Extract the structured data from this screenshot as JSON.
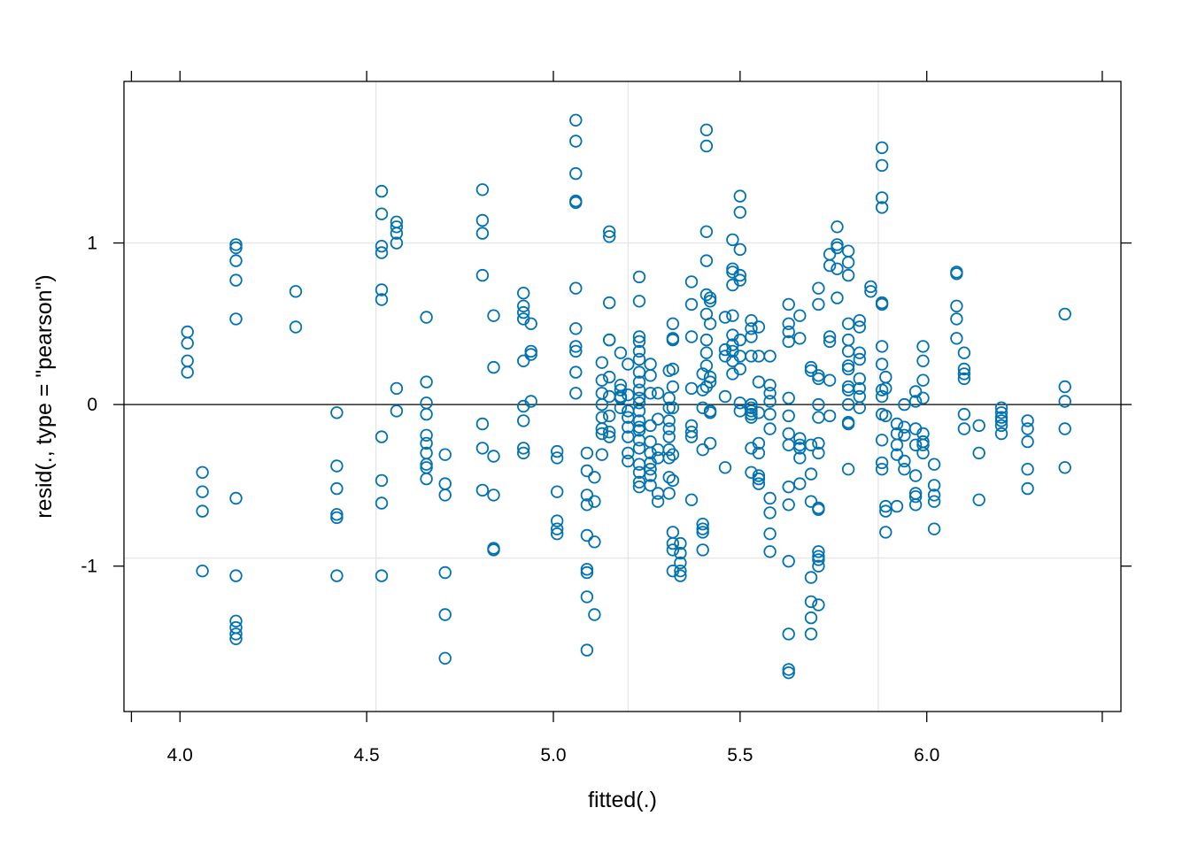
{
  "chart_data": {
    "type": "scatter",
    "title": "",
    "xlabel": "fitted(.)",
    "ylabel": "resid(., type = \"pearson\")",
    "xlim": [
      3.85,
      6.52
    ],
    "ylim": [
      -1.9,
      2.0
    ],
    "xticks": [
      "4.0",
      "4.5",
      "5.0",
      "5.5",
      "6.0"
    ],
    "yticks": [
      "-1",
      "0",
      "1"
    ],
    "grid": true,
    "reference_line_y": 0,
    "point_color": "#0072B2",
    "grid_color": "#E6E6E6",
    "groups": [
      {
        "x": 4.02,
        "y": [
          0.45,
          0.38,
          0.27,
          0.2
        ]
      },
      {
        "x": 4.06,
        "y": [
          -0.42,
          -0.54,
          -0.66,
          -1.03
        ]
      },
      {
        "x": 4.15,
        "y": [
          0.99,
          0.97,
          0.89,
          0.77,
          0.53,
          -0.58,
          -1.06,
          -1.34,
          -1.38,
          -1.42,
          -1.45
        ]
      },
      {
        "x": 4.31,
        "y": [
          0.7,
          0.48
        ]
      },
      {
        "x": 4.42,
        "y": [
          -0.05,
          -0.38,
          -0.52,
          -0.68,
          -0.7,
          -1.06
        ]
      },
      {
        "x": 4.54,
        "y": [
          1.32,
          1.18,
          0.98,
          0.94,
          0.71,
          0.65,
          -0.2,
          -0.47,
          -0.61,
          -1.06
        ]
      },
      {
        "x": 4.58,
        "y": [
          1.13,
          1.1,
          1.06,
          1.0,
          0.1,
          -0.04
        ]
      },
      {
        "x": 4.66,
        "y": [
          0.54,
          0.14,
          0.01,
          -0.06,
          -0.19,
          -0.24,
          -0.3,
          -0.37,
          -0.39,
          -0.46
        ]
      },
      {
        "x": 4.71,
        "y": [
          -0.31,
          -0.49,
          -0.56,
          -1.04,
          -1.3,
          -1.57
        ]
      },
      {
        "x": 4.81,
        "y": [
          1.33,
          1.14,
          1.06,
          0.8,
          -0.12,
          -0.27,
          -0.53
        ]
      },
      {
        "x": 4.84,
        "y": [
          0.55,
          0.23,
          -0.32,
          -0.56,
          -0.89,
          -0.9
        ]
      },
      {
        "x": 4.92,
        "y": [
          0.69,
          0.61,
          0.57,
          0.53,
          0.27,
          -0.01,
          -0.1,
          -0.27,
          -0.3
        ]
      },
      {
        "x": 4.94,
        "y": [
          0.5,
          0.33,
          0.31,
          0.02
        ]
      },
      {
        "x": 5.01,
        "y": [
          -0.29,
          -0.33,
          -0.54,
          -0.72,
          -0.77,
          -0.8
        ]
      },
      {
        "x": 5.06,
        "y": [
          1.76,
          1.63,
          1.43,
          1.26,
          1.25,
          0.72,
          0.47,
          0.36,
          0.33,
          0.2,
          0.07
        ]
      },
      {
        "x": 5.09,
        "y": [
          -0.3,
          -0.41,
          -0.56,
          -0.62,
          -0.81,
          -1.02,
          -1.04,
          -1.19,
          -1.52
        ]
      },
      {
        "x": 5.11,
        "y": [
          -0.45,
          -0.6,
          -0.85,
          -1.3
        ]
      },
      {
        "x": 5.13,
        "y": [
          0.26,
          0.15,
          0.07,
          0.0,
          -0.08,
          -0.15,
          -0.18,
          -0.31
        ]
      },
      {
        "x": 5.15,
        "y": [
          1.07,
          1.04,
          0.63,
          0.4,
          0.4,
          0.17,
          0.05,
          -0.07,
          -0.17,
          -0.2
        ]
      },
      {
        "x": 5.18,
        "y": [
          0.32,
          0.12,
          0.09,
          0.05,
          0.04,
          -0.02
        ]
      },
      {
        "x": 5.2,
        "y": [
          0.25,
          0.06,
          -0.04,
          -0.08,
          -0.14,
          -0.2,
          -0.3,
          -0.35
        ]
      },
      {
        "x": 5.23,
        "y": [
          0.79,
          0.64,
          0.42,
          0.39,
          0.33,
          0.28,
          0.2,
          0.14,
          0.09,
          0.04,
          0.01,
          -0.04,
          -0.1,
          -0.14,
          -0.16,
          -0.22,
          -0.27,
          -0.37,
          -0.42,
          -0.48,
          -0.51
        ]
      },
      {
        "x": 5.26,
        "y": [
          0.25,
          0.18,
          0.07,
          -0.13,
          -0.23,
          -0.3,
          -0.36,
          -0.4,
          -0.44,
          -0.5
        ]
      },
      {
        "x": 5.28,
        "y": [
          0.07,
          -0.09,
          -0.28,
          -0.33,
          -0.55,
          -0.6
        ]
      },
      {
        "x": 5.31,
        "y": [
          0.21,
          0.04,
          -0.02,
          -0.1,
          -0.15,
          -0.2,
          -0.28,
          -0.33,
          -0.45,
          -0.55
        ]
      },
      {
        "x": 5.32,
        "y": [
          0.5,
          0.41,
          0.4,
          0.22,
          0.11,
          -0.02,
          -0.31,
          -0.47,
          -0.79,
          -0.86,
          -0.9,
          -1.03
        ]
      },
      {
        "x": 5.34,
        "y": [
          -0.86,
          -0.92,
          -0.98,
          -1.03,
          -1.06
        ]
      },
      {
        "x": 5.37,
        "y": [
          0.76,
          0.62,
          0.42,
          0.1,
          -0.13,
          -0.17,
          -0.2,
          -0.59
        ]
      },
      {
        "x": 5.4,
        "y": [
          0.19,
          0.09,
          -0.02,
          -0.28,
          -0.74,
          -0.77,
          -0.79,
          -0.9
        ]
      },
      {
        "x": 5.41,
        "y": [
          1.7,
          1.6,
          1.07,
          0.89,
          0.68,
          0.56,
          0.4,
          0.32,
          0.24,
          0.11
        ]
      },
      {
        "x": 5.42,
        "y": [
          0.66,
          0.64,
          0.5,
          0.17,
          0.14,
          -0.04,
          -0.05,
          -0.24
        ]
      },
      {
        "x": 5.46,
        "y": [
          0.54,
          0.34,
          0.3,
          0.05,
          -0.39
        ]
      },
      {
        "x": 5.48,
        "y": [
          1.02,
          0.84,
          0.82,
          0.74,
          0.55,
          0.43,
          0.37,
          0.33,
          0.27,
          0.19
        ]
      },
      {
        "x": 5.5,
        "y": [
          1.29,
          1.19,
          0.96,
          0.8,
          0.77,
          0.4,
          0.3,
          0.22,
          0.01,
          -0.04
        ]
      },
      {
        "x": 5.53,
        "y": [
          0.52,
          0.47,
          0.42,
          0.3,
          0.0,
          -0.02,
          -0.04,
          -0.06,
          -0.08,
          -0.27,
          -0.42
        ]
      },
      {
        "x": 5.55,
        "y": [
          0.48,
          0.3,
          0.14,
          -0.05,
          -0.24,
          -0.3,
          -0.44,
          -0.46,
          -0.49
        ]
      },
      {
        "x": 5.58,
        "y": [
          0.3,
          0.12,
          0.07,
          0.02,
          -0.06,
          -0.15,
          -0.58,
          -0.67,
          -0.8,
          -0.91
        ]
      },
      {
        "x": 5.63,
        "y": [
          0.62,
          0.5,
          0.45,
          0.39,
          0.04,
          -0.07,
          -0.18,
          -0.25,
          -0.51,
          -0.62,
          -0.97,
          -1.42,
          -1.64,
          -1.66
        ]
      },
      {
        "x": 5.66,
        "y": [
          0.55,
          0.41,
          -0.21,
          -0.25,
          -0.27,
          -0.33,
          -0.49
        ]
      },
      {
        "x": 5.69,
        "y": [
          0.23,
          0.21,
          -0.25,
          -0.43,
          -0.6,
          -1.07,
          -1.22,
          -1.32,
          -1.42
        ]
      },
      {
        "x": 5.71,
        "y": [
          0.72,
          0.62,
          0.18,
          0.16,
          0.0,
          -0.08,
          -0.24,
          -0.3,
          -0.64,
          -0.65,
          -0.91,
          -0.94,
          -0.96,
          -1.0,
          -1.24
        ]
      },
      {
        "x": 5.74,
        "y": [
          0.93,
          0.86,
          0.42,
          0.39,
          0.15,
          -0.07
        ]
      },
      {
        "x": 5.76,
        "y": [
          1.1,
          0.99,
          0.97,
          0.84,
          0.66
        ]
      },
      {
        "x": 5.79,
        "y": [
          0.95,
          0.88,
          0.8,
          0.5,
          0.4,
          0.33,
          0.24,
          0.22,
          0.11,
          0.09,
          0.0,
          -0.11,
          -0.12,
          -0.4
        ]
      },
      {
        "x": 5.82,
        "y": [
          0.52,
          0.48,
          0.32,
          0.28,
          0.16,
          0.1,
          0.05,
          -0.02
        ]
      },
      {
        "x": 5.85,
        "y": [
          0.73,
          0.7
        ]
      },
      {
        "x": 5.88,
        "y": [
          1.59,
          1.48,
          1.28,
          1.22,
          0.63,
          0.62,
          0.36,
          0.25,
          0.09,
          0.05,
          -0.06,
          -0.22,
          -0.36,
          -0.4
        ]
      },
      {
        "x": 5.89,
        "y": [
          0.17,
          0.1,
          -0.07,
          -0.63,
          -0.66,
          -0.79
        ]
      },
      {
        "x": 5.92,
        "y": [
          -0.12,
          -0.18,
          -0.25,
          -0.31,
          -0.63
        ]
      },
      {
        "x": 5.94,
        "y": [
          0.0,
          -0.14,
          -0.19,
          -0.35,
          -0.4
        ]
      },
      {
        "x": 5.97,
        "y": [
          0.08,
          0.02,
          -0.15,
          -0.25,
          -0.44,
          -0.55,
          -0.57,
          -0.62
        ]
      },
      {
        "x": 5.99,
        "y": [
          0.36,
          0.27,
          0.15,
          0.04,
          -0.18,
          -0.23,
          -0.25,
          -0.3
        ]
      },
      {
        "x": 6.02,
        "y": [
          -0.37,
          -0.5,
          -0.56,
          -0.6,
          -0.77
        ]
      },
      {
        "x": 6.08,
        "y": [
          0.82,
          0.81,
          0.61,
          0.53,
          0.41
        ]
      },
      {
        "x": 6.1,
        "y": [
          0.32,
          0.22,
          0.19,
          0.16,
          -0.06,
          -0.15
        ]
      },
      {
        "x": 6.14,
        "y": [
          -0.13,
          -0.3,
          -0.59
        ]
      },
      {
        "x": 6.2,
        "y": [
          -0.02,
          -0.05,
          -0.08,
          -0.1,
          -0.13,
          -0.18
        ]
      },
      {
        "x": 6.27,
        "y": [
          -0.1,
          -0.15,
          -0.23,
          -0.4,
          -0.52
        ]
      },
      {
        "x": 6.37,
        "y": [
          0.56,
          0.11,
          0.02,
          -0.15,
          -0.39
        ]
      }
    ]
  }
}
